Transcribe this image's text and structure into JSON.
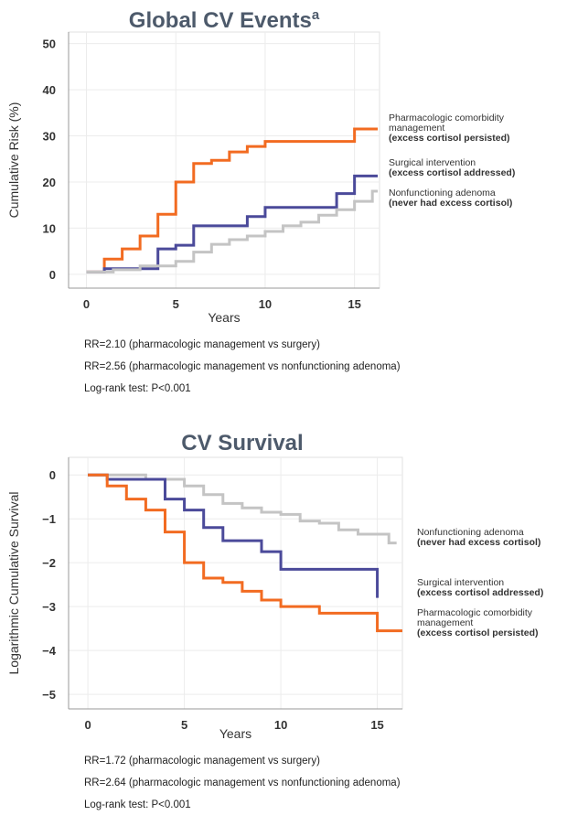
{
  "chart_data": [
    {
      "type": "step",
      "title": "Global CV Events",
      "title_superscript": "a",
      "x_label": "Years",
      "y_label": "Cumulative Risk (%)",
      "xlim": [
        -1,
        16.4
      ],
      "ylim": [
        -3,
        52.5
      ],
      "xticks": [
        0,
        5,
        10,
        15
      ],
      "yticks": [
        0,
        10,
        20,
        30,
        40,
        50
      ],
      "grid": true,
      "series": [
        {
          "name": "Pharmacologic comorbidity management",
          "note": "(excess cortisol persisted)",
          "color": "#f26b21",
          "x": [
            0,
            1,
            2,
            3,
            4,
            5,
            6,
            7,
            8,
            9,
            10,
            15,
            16.3
          ],
          "values": [
            0.5,
            3.3,
            5.5,
            8.3,
            13,
            20,
            24,
            24.7,
            26.5,
            27.7,
            28.8,
            31.5,
            31.5
          ]
        },
        {
          "name": "Surgical intervention",
          "note": "(excess cortisol addressed)",
          "color": "#4b4a9a",
          "x": [
            0,
            1,
            4,
            5,
            6,
            9,
            10,
            14,
            15,
            16.3
          ],
          "values": [
            0.5,
            1.2,
            5.5,
            6.3,
            10.5,
            12.5,
            14.5,
            17.5,
            21.3,
            21.3
          ]
        },
        {
          "name": "Nonfunctioning adenoma",
          "note": "(never had excess cortisol)",
          "color": "#c4c4c4",
          "x": [
            0,
            1.5,
            3,
            5,
            6,
            7,
            8,
            9,
            10,
            11,
            12,
            13,
            14,
            15,
            16,
            16.3
          ],
          "values": [
            0.5,
            1,
            1.8,
            2.8,
            4.8,
            6.5,
            7.5,
            8.3,
            9.3,
            10.5,
            11.3,
            12.8,
            14,
            15.8,
            18,
            18
          ]
        }
      ],
      "notes": [
        "RR=2.10 (pharmacologic management vs surgery)",
        "RR=2.56 (pharmacologic management vs nonfunctioning adenoma)",
        "Log-rank test: P<0.001"
      ]
    },
    {
      "type": "step",
      "title": "CV Survival",
      "x_label": "Years",
      "y_label": "Logarithmic Cumulative Survival",
      "xlim": [
        -1,
        16.3
      ],
      "ylim": [
        -5.33,
        0.4
      ],
      "xticks": [
        0,
        5,
        10,
        15
      ],
      "yticks": [
        0,
        {
          "value": -1,
          "label": "−1"
        },
        {
          "value": -2,
          "label": "−2"
        },
        {
          "value": -3,
          "label": "−3"
        },
        {
          "value": -4,
          "label": "−4"
        },
        {
          "value": -5,
          "label": "−5"
        }
      ],
      "grid": true,
      "series": [
        {
          "name": "Nonfunctioning adenoma",
          "note": "(never had excess cortisol)",
          "color": "#c4c4c4",
          "x": [
            0,
            3,
            5,
            6,
            7,
            8,
            9,
            10,
            11,
            12,
            13,
            14,
            15.6,
            16
          ],
          "values": [
            0,
            -0.1,
            -0.25,
            -0.45,
            -0.65,
            -0.75,
            -0.85,
            -0.9,
            -1.05,
            -1.1,
            -1.25,
            -1.35,
            -1.55,
            -1.55
          ]
        },
        {
          "name": "Surgical intervention",
          "note": "(excess cortisol addressed)",
          "color": "#4b4a9a",
          "x": [
            0,
            1,
            4,
            5,
            6,
            7,
            9,
            10,
            15
          ],
          "values": [
            0,
            -0.1,
            -0.55,
            -0.8,
            -1.2,
            -1.5,
            -1.75,
            -2.15,
            -2.8
          ]
        },
        {
          "name": "Pharmacologic comorbidity management",
          "note": "(excess cortisol persisted)",
          "color": "#f26b21",
          "x": [
            0,
            1,
            2,
            3,
            4,
            5,
            6,
            7,
            8,
            9,
            10,
            12,
            15,
            16.3
          ],
          "values": [
            0,
            -0.25,
            -0.55,
            -0.8,
            -1.3,
            -2,
            -2.35,
            -2.45,
            -2.65,
            -2.85,
            -3,
            -3.15,
            -3.55,
            -3.55
          ]
        }
      ],
      "notes": [
        "RR=1.72 (pharmacologic management vs surgery)",
        "RR=2.64 (pharmacologic management vs nonfunctioning adenoma)",
        "Log-rank test: P<0.001"
      ]
    }
  ]
}
